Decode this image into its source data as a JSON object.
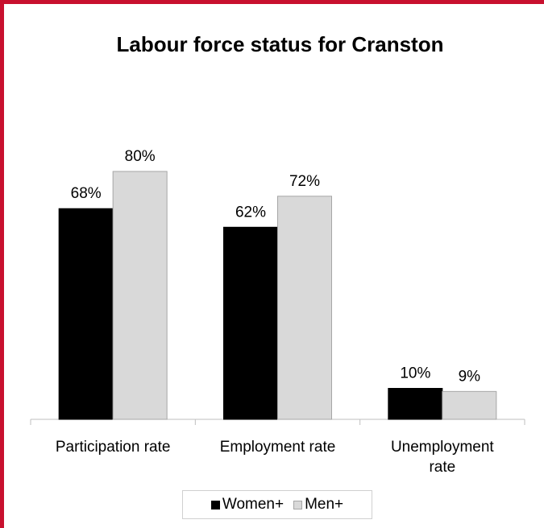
{
  "colors": {
    "frame": "#c8102e",
    "women": "#000000",
    "men": "#d9d9d9",
    "axis": "#bfbfbf"
  },
  "chart_data": {
    "type": "bar",
    "title": "Labour force status for Cranston",
    "categories": [
      "Participation rate",
      "Employment rate",
      "Unemployment rate"
    ],
    "category_lines": [
      [
        "Participation rate"
      ],
      [
        "Employment rate"
      ],
      [
        "Unemployment",
        "rate"
      ]
    ],
    "series": [
      {
        "name": "Women+",
        "values": [
          68,
          62,
          10
        ],
        "labels": [
          "68%",
          "62%",
          "10%"
        ]
      },
      {
        "name": "Men+",
        "values": [
          80,
          72,
          9
        ],
        "labels": [
          "80%",
          "72%",
          "9%"
        ]
      }
    ],
    "ylim": [
      0,
      100
    ],
    "grid": false,
    "legend": "bottom"
  }
}
